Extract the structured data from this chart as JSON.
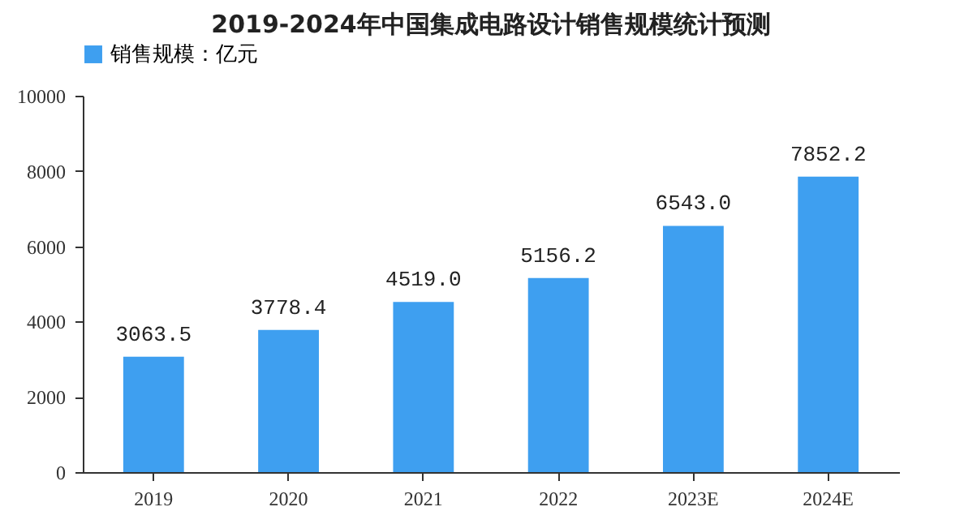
{
  "chart_data": {
    "type": "bar",
    "title": "2019-2024年中国集成电路设计销售规模统计预测",
    "categories": [
      "2019",
      "2020",
      "2021",
      "2022",
      "2023E",
      "2024E"
    ],
    "series": [
      {
        "name": "销售规模：亿元",
        "color": "#3e9ff0",
        "values": [
          3063.5,
          3778.4,
          4519,
          5156.2,
          6543,
          7852.2
        ],
        "value_labels": [
          "3063.5",
          "3778.4",
          "4519.0",
          "5156.2",
          "6543.0",
          "7852.2"
        ]
      }
    ],
    "ylim": [
      0,
      10000
    ],
    "yticks": [
      0,
      2000,
      4000,
      6000,
      8000,
      10000
    ],
    "legend": "top",
    "grid": false
  }
}
